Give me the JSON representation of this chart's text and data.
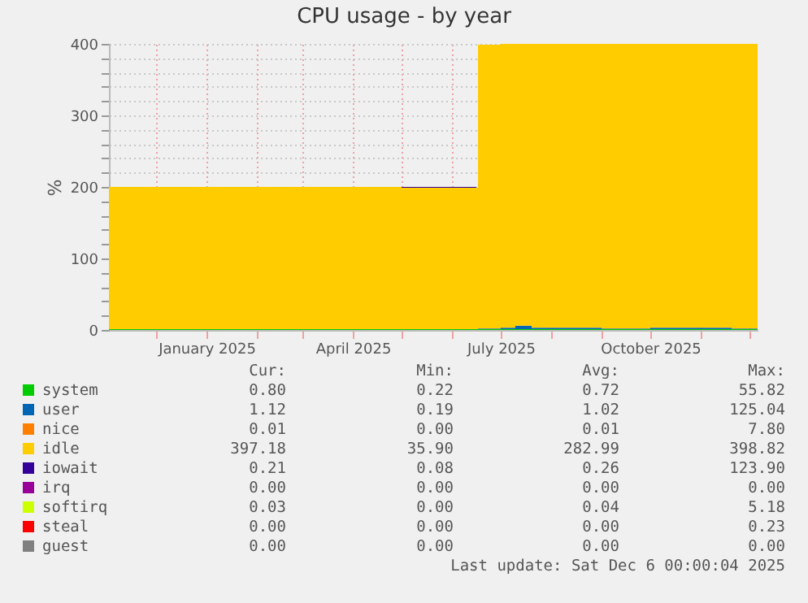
{
  "chart_data": {
    "type": "area",
    "stacked": true,
    "title": "CPU usage - by year",
    "ylabel": "%",
    "x": [
      "2024-11-02",
      "2024-12-01",
      "2025-01-01",
      "2025-02-01",
      "2025-03-01",
      "2025-04-01",
      "2025-05-01",
      "2025-06-01",
      "2025-06-16",
      "2025-06-17",
      "2025-07-01",
      "2025-07-10",
      "2025-07-20",
      "2025-08-01",
      "2025-09-01",
      "2025-10-01",
      "2025-10-20",
      "2025-11-01",
      "2025-11-20",
      "2025-12-06"
    ],
    "series": [
      {
        "name": "system",
        "color": "#00cc00",
        "values": [
          1,
          1,
          1,
          1,
          1,
          1,
          1,
          1,
          1,
          1,
          1,
          1,
          1,
          1,
          1,
          1,
          1,
          1,
          1,
          1
        ]
      },
      {
        "name": "user",
        "color": "#0066b3",
        "values": [
          null,
          null,
          null,
          null,
          null,
          null,
          null,
          null,
          null,
          1,
          2,
          5,
          2,
          2,
          1,
          2,
          2,
          2,
          1,
          1
        ]
      },
      {
        "name": "nice",
        "color": "#ff8000",
        "values": [
          null,
          null,
          null,
          null,
          null,
          null,
          null,
          null,
          null,
          null,
          null,
          null,
          null,
          null,
          null,
          null,
          null,
          null,
          null,
          null
        ]
      },
      {
        "name": "idle",
        "color": "#ffcc00",
        "values": [
          199,
          199,
          199,
          199,
          199,
          199,
          198,
          198,
          198,
          397,
          397,
          394,
          397,
          397,
          398,
          397,
          397,
          397,
          398,
          398
        ]
      },
      {
        "name": "iowait",
        "color": "#330099",
        "values": [
          null,
          null,
          null,
          null,
          null,
          null,
          1,
          1,
          1,
          null,
          null,
          null,
          null,
          null,
          null,
          null,
          null,
          null,
          null,
          null
        ]
      },
      {
        "name": "irq",
        "color": "#990099",
        "values": [
          null,
          null,
          null,
          null,
          null,
          null,
          null,
          null,
          null,
          null,
          null,
          null,
          null,
          null,
          null,
          null,
          null,
          null,
          null,
          null
        ]
      },
      {
        "name": "softirq",
        "color": "#ccff00",
        "values": [
          null,
          null,
          null,
          null,
          null,
          null,
          null,
          null,
          null,
          null,
          null,
          null,
          null,
          null,
          null,
          null,
          null,
          null,
          null,
          null
        ]
      },
      {
        "name": "steal",
        "color": "#ff0000",
        "values": [
          null,
          null,
          null,
          null,
          null,
          null,
          null,
          null,
          null,
          null,
          null,
          null,
          null,
          null,
          null,
          null,
          null,
          null,
          null,
          null
        ]
      },
      {
        "name": "guest",
        "color": "#808080",
        "values": [
          null,
          null,
          null,
          null,
          null,
          null,
          null,
          null,
          null,
          null,
          null,
          null,
          null,
          null,
          null,
          null,
          null,
          null,
          null,
          null
        ]
      }
    ],
    "xlim": [
      "2024-11-02",
      "2025-12-06"
    ],
    "xticks": [
      {
        "value": "2024-12-01",
        "label": null
      },
      {
        "value": "2025-01-01",
        "label": "January 2025"
      },
      {
        "value": "2025-02-01",
        "label": null
      },
      {
        "value": "2025-03-01",
        "label": null
      },
      {
        "value": "2025-04-01",
        "label": "April 2025"
      },
      {
        "value": "2025-05-01",
        "label": null
      },
      {
        "value": "2025-06-01",
        "label": null
      },
      {
        "value": "2025-07-01",
        "label": "July 2025"
      },
      {
        "value": "2025-08-01",
        "label": null
      },
      {
        "value": "2025-09-01",
        "label": null
      },
      {
        "value": "2025-10-01",
        "label": "October 2025"
      },
      {
        "value": "2025-11-01",
        "label": null
      },
      {
        "value": "2025-12-01",
        "label": null
      }
    ],
    "ylim": [
      0,
      400
    ],
    "yticks": [
      0,
      {
        "value": 20,
        "label": null
      },
      {
        "value": 40,
        "label": null
      },
      {
        "value": 60,
        "label": null
      },
      {
        "value": 80,
        "label": null
      },
      100,
      {
        "value": 120,
        "label": null
      },
      {
        "value": 140,
        "label": null
      },
      {
        "value": 160,
        "label": null
      },
      {
        "value": 180,
        "label": null
      },
      200,
      {
        "value": 220,
        "label": null
      },
      {
        "value": 240,
        "label": null
      },
      {
        "value": 260,
        "label": null
      },
      {
        "value": 280,
        "label": null
      },
      300,
      {
        "value": 320,
        "label": null
      },
      {
        "value": 340,
        "label": null
      },
      {
        "value": 360,
        "label": null
      },
      {
        "value": 380,
        "label": null
      },
      400
    ],
    "grid": true,
    "legend": "bottom",
    "annotations": [
      "Cur:",
      "Min:",
      "Avg:",
      "Max:",
      "0.80",
      "0.22",
      "0.72",
      "55.82",
      "1.12",
      "0.19",
      "1.02",
      "125.04",
      "0.01",
      "0.00",
      "0.01",
      "7.80",
      "397.18",
      "35.90",
      "282.99",
      "398.82",
      "0.21",
      "0.08",
      "0.26",
      "123.90",
      "0.00",
      "0.00",
      "0.00",
      "0.00",
      "0.03",
      "0.00",
      "0.04",
      "5.18",
      "0.00",
      "0.00",
      "0.00",
      "0.23",
      "0.00",
      "0.00",
      "0.00",
      "0.00",
      "Last update: Sat Dec  6 00:00:04 2025"
    ]
  }
}
